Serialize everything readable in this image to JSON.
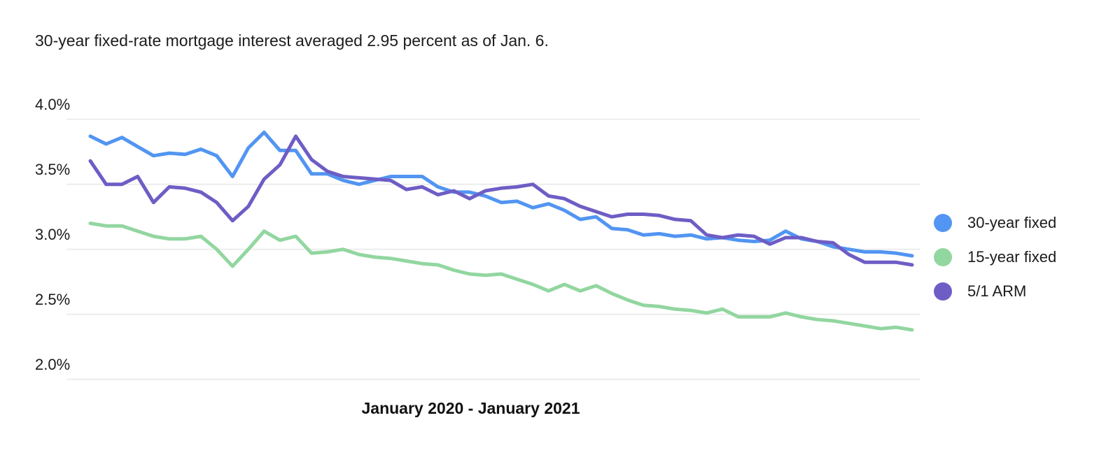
{
  "chart_data": {
    "type": "line",
    "title": "30-year fixed-rate mortgage interest averaged 2.95 percent as of Jan. 6.",
    "xlabel": "January 2020 - January 2021",
    "ylabel": "",
    "ylim": [
      2.0,
      4.0
    ],
    "grid": "horizontal",
    "legend_position": "right",
    "y_ticks": [
      {
        "label": "4.0%",
        "value": 4.0
      },
      {
        "label": "3.5%",
        "value": 3.5
      },
      {
        "label": "3.0%",
        "value": 3.0
      },
      {
        "label": "2.5%",
        "value": 2.5
      },
      {
        "label": "2.0%",
        "value": 2.0
      }
    ],
    "x_unit": "weekly",
    "x_point_count": 53,
    "series": [
      {
        "name": "30-year fixed",
        "color": "#5295F2",
        "values": [
          3.87,
          3.81,
          3.86,
          3.79,
          3.72,
          3.74,
          3.73,
          3.77,
          3.72,
          3.56,
          3.78,
          3.9,
          3.76,
          3.76,
          3.58,
          3.58,
          3.53,
          3.5,
          3.53,
          3.56,
          3.56,
          3.56,
          3.48,
          3.44,
          3.44,
          3.41,
          3.36,
          3.37,
          3.32,
          3.35,
          3.3,
          3.23,
          3.25,
          3.16,
          3.15,
          3.11,
          3.12,
          3.1,
          3.11,
          3.08,
          3.09,
          3.07,
          3.06,
          3.07,
          3.14,
          3.08,
          3.06,
          3.02,
          3.0,
          2.98,
          2.98,
          2.97,
          2.95
        ]
      },
      {
        "name": "15-year fixed",
        "color": "#92D6A0",
        "values": [
          3.2,
          3.18,
          3.18,
          3.14,
          3.1,
          3.08,
          3.08,
          3.1,
          3.0,
          2.87,
          3.0,
          3.14,
          3.07,
          3.1,
          2.97,
          2.98,
          3.0,
          2.96,
          2.94,
          2.93,
          2.91,
          2.89,
          2.88,
          2.84,
          2.81,
          2.8,
          2.81,
          2.77,
          2.73,
          2.68,
          2.73,
          2.68,
          2.72,
          2.66,
          2.61,
          2.57,
          2.56,
          2.54,
          2.53,
          2.51,
          2.54,
          2.48,
          2.48,
          2.48,
          2.51,
          2.48,
          2.46,
          2.45,
          2.43,
          2.41,
          2.39,
          2.4,
          2.38
        ]
      },
      {
        "name": "5/1 ARM",
        "color": "#6E5DC5",
        "values": [
          3.68,
          3.5,
          3.5,
          3.56,
          3.36,
          3.48,
          3.47,
          3.44,
          3.36,
          3.22,
          3.33,
          3.54,
          3.65,
          3.87,
          3.69,
          3.6,
          3.56,
          3.55,
          3.54,
          3.53,
          3.46,
          3.48,
          3.42,
          3.45,
          3.39,
          3.45,
          3.47,
          3.48,
          3.5,
          3.41,
          3.39,
          3.33,
          3.29,
          3.25,
          3.27,
          3.27,
          3.26,
          3.23,
          3.22,
          3.11,
          3.09,
          3.11,
          3.1,
          3.04,
          3.09,
          3.09,
          3.06,
          3.05,
          2.96,
          2.9,
          2.9,
          2.9,
          2.88
        ]
      }
    ],
    "gridline_color": "#ededed"
  }
}
